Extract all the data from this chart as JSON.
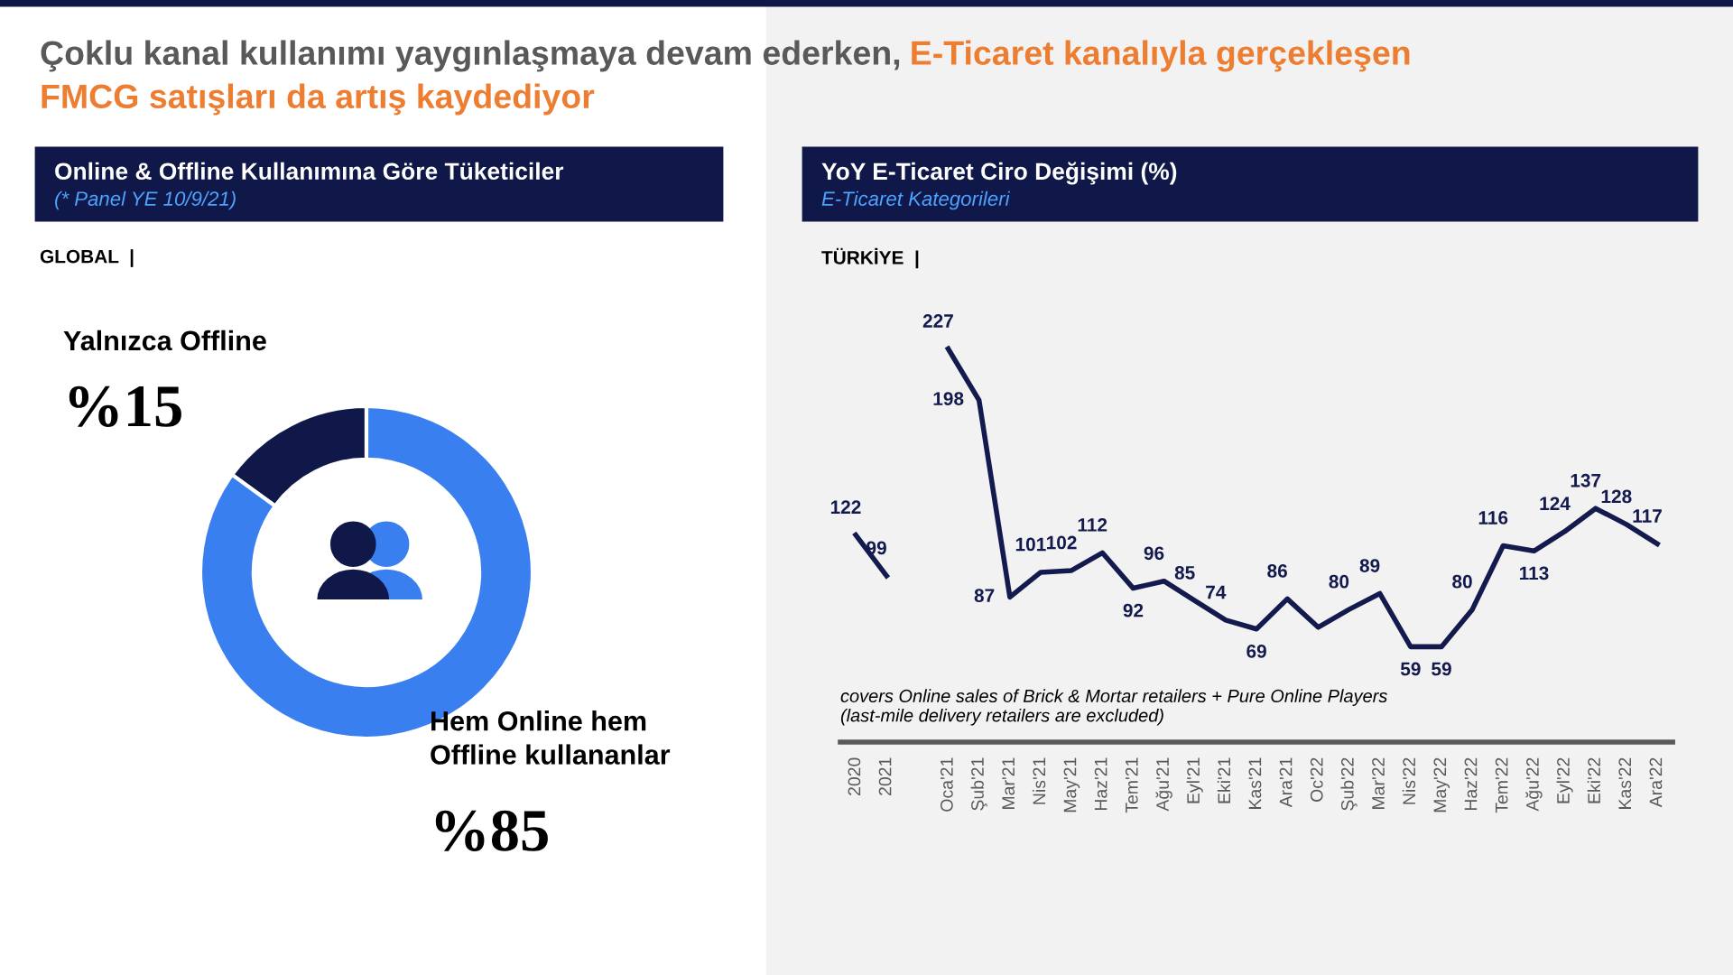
{
  "chart_data": [
    {
      "type": "donut",
      "title": "Online & Offline Kullanımına Göre Tüketiciler",
      "subtitle": "(* Panel YE 10/9/21)",
      "categories": [
        "Yalnızca Offline",
        "Hem Online hem Offline kullananlar"
      ],
      "values": [
        15,
        85
      ],
      "colors": [
        "#0f1848",
        "#3a7ff0"
      ],
      "value_labels": [
        "%15",
        "%85"
      ],
      "annotations": [
        "Çoklu kanal kullanımı yaygınlaşmaya devam ederken,",
        "E-Ticaret kanalıyla gerçekleşen",
        "FMCG satışları da artış kaydediyor",
        "GLOBAL  |"
      ],
      "legend": false
    },
    {
      "type": "line",
      "title": "YoY E-Ticaret Ciro Değişimi (%)",
      "subtitle": "E-Ticaret Kategorileri",
      "categories": [
        "2020",
        "2021",
        null,
        "Oca'21",
        "Şub'21",
        "Mar'21",
        "Nis'21",
        "May'21",
        "Haz'21",
        "Tem'21",
        "Ağu'21",
        "Eyl'21",
        "Eki'21",
        "Kas'21",
        "Ara'21",
        "Oc'22",
        "Şub'22",
        "Mar'22",
        "Nis'22",
        "May'22",
        "Haz'22",
        "Tem'22",
        "Ağu'22",
        "Eyl'22",
        "Eki'22",
        "Kas'22",
        "Ara'22"
      ],
      "series": [
        {
          "color": "#131a4d",
          "values": [
            122,
            99,
            null,
            227,
            198,
            87,
            101,
            102,
            112,
            92,
            96,
            85,
            74,
            69,
            86,
            70,
            80,
            89,
            59,
            59,
            80,
            116,
            113,
            124,
            137,
            128,
            117
          ],
          "value_labels": [
            "122",
            "99",
            null,
            "227",
            "198",
            "87",
            "101",
            "102",
            "112",
            "92",
            "96",
            "85",
            "74",
            "69",
            "86",
            null,
            "80",
            "89",
            "59",
            "59",
            "80",
            "116",
            "113",
            "124",
            "137",
            "128",
            "117"
          ]
        }
      ],
      "marker": "none",
      "line_style": "solid",
      "grid": false,
      "legend": false,
      "tick_labels": "x",
      "annotations": [
        "TÜRKİYE  |",
        "covers Online sales of Brick & Mortar retailers + Pure Online Players\n(last-mile delivery retailers are excluded)"
      ]
    }
  ]
}
